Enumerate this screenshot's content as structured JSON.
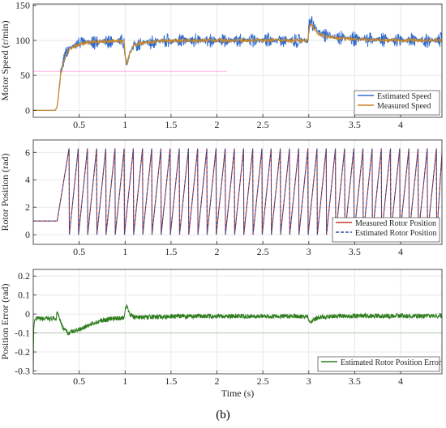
{
  "caption": "(b)",
  "colors": {
    "estimated_speed": "#2f6bd0",
    "measured_speed": "#c8882a",
    "measured_position": "#c0392b",
    "estimated_position": "#3a4a9a",
    "position_error": "#2e7d1e",
    "reference_line": "#ff66cc"
  },
  "chart_data": [
    {
      "type": "line",
      "ylabel": "Motor Speed (r/min)",
      "xlabel": "",
      "xlim": [
        0,
        4.45
      ],
      "ylim": [
        -10,
        152
      ],
      "xticks": [
        0.5,
        1,
        1.5,
        2,
        2.5,
        3,
        3.5,
        4
      ],
      "xtick_labels": [
        "0.5",
        "1",
        "1.5",
        "2",
        "2.5",
        "3",
        "3.5",
        "4"
      ],
      "yticks": [
        0,
        50,
        100,
        150
      ],
      "ytick_labels": [
        "0",
        "50",
        "100",
        "150"
      ],
      "grid": true,
      "legend_position": "bottom-right",
      "series": [
        {
          "name": "Estimated Speed",
          "x": [
            0,
            0.24,
            0.26,
            0.3,
            0.35,
            0.4,
            0.5,
            0.6,
            0.7,
            0.8,
            0.9,
            0.99,
            1.0,
            1.02,
            1.05,
            1.1,
            1.2,
            1.4,
            1.7,
            2.0,
            2.5,
            2.99,
            3.0,
            3.02,
            3.05,
            3.1,
            3.2,
            3.4,
            3.7,
            4.0,
            4.45
          ],
          "y": [
            0,
            0,
            5,
            55,
            80,
            90,
            96,
            98,
            98,
            99,
            99,
            99,
            75,
            62,
            82,
            93,
            97,
            99,
            100,
            100,
            100,
            100,
            118,
            130,
            122,
            113,
            107,
            103,
            101,
            100,
            100
          ],
          "noise": 11
        },
        {
          "name": "Measured Speed",
          "x": [
            0,
            0.24,
            0.26,
            0.3,
            0.35,
            0.4,
            0.5,
            0.6,
            0.7,
            0.8,
            0.9,
            0.99,
            1.0,
            1.02,
            1.05,
            1.1,
            1.2,
            1.4,
            1.7,
            2.0,
            2.5,
            2.99,
            3.0,
            3.02,
            3.05,
            3.1,
            3.2,
            3.4,
            3.7,
            4.0,
            4.45
          ],
          "y": [
            0,
            0,
            5,
            52,
            78,
            88,
            95,
            97,
            98,
            99,
            99,
            99,
            78,
            65,
            82,
            93,
            97,
            99,
            100,
            100,
            100,
            100,
            112,
            124,
            118,
            110,
            105,
            102,
            101,
            100,
            100
          ],
          "noise": 2
        }
      ],
      "reference_y": 50
    },
    {
      "type": "line",
      "ylabel": "Rotor Position (rad)",
      "xlabel": "",
      "xlim": [
        0,
        4.45
      ],
      "ylim": [
        -0.7,
        6.9
      ],
      "xticks": [
        0.5,
        1,
        1.5,
        2,
        2.5,
        3,
        3.5,
        4
      ],
      "xtick_labels": [
        "0.5",
        "1",
        "1.5",
        "2",
        "2.5",
        "3",
        "3.5",
        "4"
      ],
      "yticks": [
        0,
        2,
        4,
        6
      ],
      "ytick_labels": [
        "0",
        "2",
        "4",
        "6"
      ],
      "grid": true,
      "legend_position": "bottom-right",
      "series": [
        {
          "name": "Measured Rotor Position",
          "style": "solid",
          "start_value": 1.0,
          "start_time": 0.26,
          "first_peak_time": 0.39,
          "period": 0.1,
          "max": 6.28
        },
        {
          "name": "Estimated Rotor Position",
          "style": "dashed",
          "start_value": 1.0,
          "start_time": 0.26,
          "first_peak_time": 0.39,
          "period": 0.1,
          "max": 6.28
        }
      ]
    },
    {
      "type": "line",
      "ylabel": "Position Error (rad)",
      "xlabel": "Time (s)",
      "xlim": [
        0,
        4.45
      ],
      "ylim": [
        -0.315,
        0.235
      ],
      "xticks": [
        0.5,
        1,
        1.5,
        2,
        2.5,
        3,
        3.5,
        4
      ],
      "xtick_labels": [
        "0.5",
        "1",
        "1.5",
        "2",
        "2.5",
        "3",
        "3.5",
        "4"
      ],
      "yticks": [
        -0.3,
        -0.2,
        -0.1,
        0,
        0.1,
        0.2
      ],
      "ytick_labels": [
        "-0.3",
        "-0.2",
        "-0.1",
        "0",
        "0.1",
        "0.2"
      ],
      "grid": true,
      "legend_position": "bottom-right",
      "series": [
        {
          "name": "Estimated Rotor Position Error",
          "x": [
            0,
            0.005,
            0.015,
            0.03,
            0.06,
            0.1,
            0.2,
            0.25,
            0.26,
            0.28,
            0.32,
            0.38,
            0.45,
            0.55,
            0.7,
            0.85,
            0.99,
            1.0,
            1.02,
            1.05,
            1.1,
            1.2,
            1.5,
            2.0,
            2.5,
            2.99,
            3.0,
            3.02,
            3.05,
            3.1,
            3.3,
            3.6,
            4.0,
            4.45
          ],
          "y": [
            -0.3,
            -0.08,
            -0.03,
            -0.025,
            -0.025,
            -0.025,
            -0.025,
            -0.025,
            0.018,
            -0.01,
            -0.07,
            -0.1,
            -0.09,
            -0.07,
            -0.04,
            -0.025,
            -0.02,
            0.03,
            0.04,
            0.0,
            -0.015,
            -0.018,
            -0.012,
            -0.012,
            -0.012,
            -0.012,
            -0.035,
            -0.045,
            -0.03,
            -0.02,
            -0.01,
            -0.01,
            -0.01,
            -0.01
          ],
          "noise": 0.012
        }
      ]
    }
  ]
}
